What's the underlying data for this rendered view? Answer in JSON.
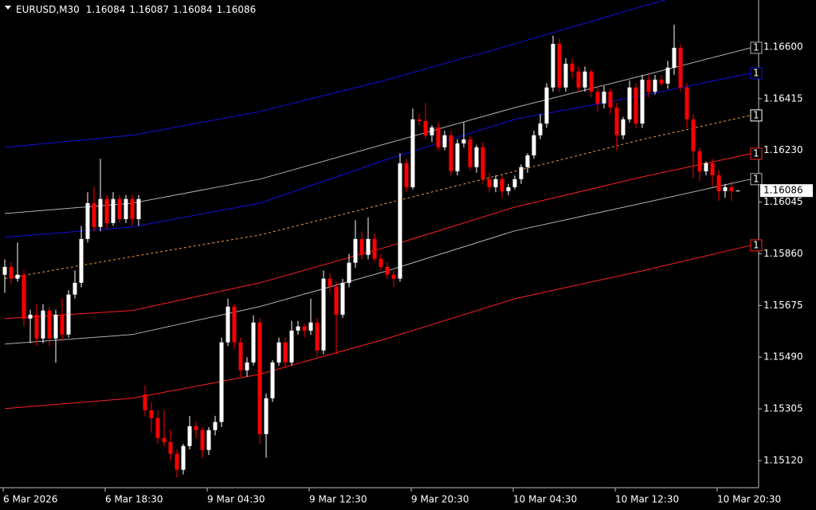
{
  "chart_data": {
    "type": "candlestick",
    "symbol": "EURUSD,M30",
    "ylim": [
      1.15023,
      1.16768
    ],
    "yticks": [
      {
        "value": 1.166,
        "label": "1.16600"
      },
      1.16415,
      {
        "value": 1.1623,
        "label": "1.16230"
      },
      1.16045,
      {
        "value": 1.1586,
        "label": "1.15860"
      },
      1.15675,
      {
        "value": 1.1549,
        "label": "1.15490"
      },
      1.15305,
      {
        "value": 1.1512,
        "label": "1.15120"
      }
    ],
    "current_price": 1.16086,
    "up_color": "#ffffff",
    "down_color": "#ff0000",
    "categories": [
      "6 Mar 2026",
      null,
      null,
      null,
      null,
      null,
      null,
      null,
      null,
      null,
      null,
      null,
      null,
      null,
      null,
      null,
      "6 Mar 18:30",
      null,
      null,
      null,
      null,
      null,
      null,
      null,
      null,
      null,
      null,
      null,
      null,
      null,
      null,
      null,
      "9 Mar 04:30",
      null,
      null,
      null,
      null,
      null,
      null,
      null,
      null,
      null,
      null,
      null,
      null,
      null,
      null,
      null,
      "9 Mar 12:30",
      null,
      null,
      null,
      null,
      null,
      null,
      null,
      null,
      null,
      null,
      null,
      null,
      null,
      null,
      null,
      "9 Mar 20:30",
      null,
      null,
      null,
      null,
      null,
      null,
      null,
      null,
      null,
      null,
      null,
      null,
      null,
      null,
      null,
      "10 Mar 04:30",
      null,
      null,
      null,
      null,
      null,
      null,
      null,
      null,
      null,
      null,
      null,
      null,
      null,
      null,
      null,
      "10 Mar 12:30",
      null,
      null,
      null,
      null,
      null,
      null,
      null,
      null,
      null,
      null,
      null,
      null,
      null,
      null,
      null,
      "10 Mar 20:30",
      null,
      null,
      null
    ],
    "candles": [
      [
        1.15785,
        1.1584,
        1.1572,
        1.15813
      ],
      [
        1.15813,
        1.1583,
        1.1575,
        1.15771
      ],
      [
        1.15771,
        1.159,
        1.1576,
        1.15785
      ],
      [
        1.15785,
        1.158,
        1.156,
        1.15628
      ],
      [
        1.15628,
        1.1566,
        1.1554,
        1.15642
      ],
      [
        1.15642,
        1.1568,
        1.1553,
        1.15557
      ],
      [
        1.15557,
        1.1568,
        1.1554,
        1.15657
      ],
      [
        1.15657,
        1.1567,
        1.1553,
        1.15557
      ],
      [
        1.15557,
        1.1566,
        1.1547,
        1.15642
      ],
      [
        1.15642,
        1.157,
        1.1555,
        1.15571
      ],
      [
        1.15571,
        1.1573,
        1.1556,
        1.15714
      ],
      [
        1.15714,
        1.158,
        1.157,
        1.15756
      ],
      [
        1.15756,
        1.1596,
        1.1574,
        1.15913
      ],
      [
        1.15913,
        1.1608,
        1.159,
        1.16041
      ],
      [
        1.16041,
        1.161,
        1.1594,
        1.15956
      ],
      [
        1.15956,
        1.162,
        1.1594,
        1.16056
      ],
      [
        1.16056,
        1.1607,
        1.1595,
        1.1597
      ],
      [
        1.1597,
        1.1608,
        1.1596,
        1.16056
      ],
      [
        1.16056,
        1.1607,
        1.1597,
        1.15984
      ],
      [
        1.15984,
        1.1607,
        1.1597,
        1.16056
      ],
      [
        1.16056,
        1.1607,
        1.1596,
        1.15984
      ],
      [
        1.15984,
        1.1607,
        1.1596,
        1.16056
      ],
      [
        1.15357,
        1.1539,
        1.1528,
        1.153
      ],
      [
        1.153,
        1.1533,
        1.1522,
        1.15272
      ],
      [
        1.15272,
        1.153,
        1.1518,
        1.15201
      ],
      [
        1.15201,
        1.153,
        1.1517,
        1.15186
      ],
      [
        1.15186,
        1.1523,
        1.1512,
        1.15144
      ],
      [
        1.15144,
        1.1516,
        1.1506,
        1.15087
      ],
      [
        1.15087,
        1.1518,
        1.1507,
        1.15172
      ],
      [
        1.15172,
        1.1528,
        1.1516,
        1.15243
      ],
      [
        1.15243,
        1.1526,
        1.152,
        1.15229
      ],
      [
        1.15229,
        1.1524,
        1.1513,
        1.15158
      ],
      [
        1.15158,
        1.1524,
        1.1514,
        1.15229
      ],
      [
        1.15229,
        1.1528,
        1.1521,
        1.15258
      ],
      [
        1.15258,
        1.1556,
        1.1524,
        1.15543
      ],
      [
        1.15543,
        1.157,
        1.1553,
        1.15671
      ],
      [
        1.15671,
        1.1568,
        1.1552,
        1.15543
      ],
      [
        1.15543,
        1.1556,
        1.1542,
        1.15443
      ],
      [
        1.15443,
        1.1549,
        1.1542,
        1.15471
      ],
      [
        1.15471,
        1.1564,
        1.1546,
        1.15614
      ],
      [
        1.15614,
        1.1563,
        1.1518,
        1.15215
      ],
      [
        1.15215,
        1.1536,
        1.1513,
        1.15343
      ],
      [
        1.15343,
        1.1548,
        1.1533,
        1.15471
      ],
      [
        1.15471,
        1.1556,
        1.1546,
        1.15543
      ],
      [
        1.15543,
        1.1556,
        1.1545,
        1.15471
      ],
      [
        1.15471,
        1.1562,
        1.1546,
        1.15585
      ],
      [
        1.15585,
        1.1562,
        1.1557,
        1.156
      ],
      [
        1.156,
        1.1561,
        1.1556,
        1.15585
      ],
      [
        1.15585,
        1.157,
        1.1557,
        1.15614
      ],
      [
        1.15614,
        1.1563,
        1.1549,
        1.15514
      ],
      [
        1.15514,
        1.158,
        1.155,
        1.15771
      ],
      [
        1.15771,
        1.1579,
        1.1572,
        1.15742
      ],
      [
        1.15742,
        1.1576,
        1.155,
        1.15642
      ],
      [
        1.15642,
        1.1577,
        1.1563,
        1.15756
      ],
      [
        1.15756,
        1.1586,
        1.1574,
        1.15828
      ],
      [
        1.15828,
        1.1598,
        1.1581,
        1.15913
      ],
      [
        1.15913,
        1.1594,
        1.1584,
        1.15856
      ],
      [
        1.15856,
        1.1599,
        1.1584,
        1.15913
      ],
      [
        1.15913,
        1.1593,
        1.1583,
        1.15842
      ],
      [
        1.15842,
        1.1586,
        1.158,
        1.15813
      ],
      [
        1.15813,
        1.1583,
        1.1577,
        1.15785
      ],
      [
        1.15785,
        1.158,
        1.1574,
        1.15771
      ],
      [
        1.15771,
        1.1622,
        1.1576,
        1.16184
      ],
      [
        1.16184,
        1.162,
        1.1608,
        1.16098
      ],
      [
        1.16098,
        1.1638,
        1.1609,
        1.16341
      ],
      [
        1.16341,
        1.1636,
        1.1632,
        1.16335
      ],
      [
        1.16335,
        1.164,
        1.1627,
        1.16284
      ],
      [
        1.16284,
        1.1632,
        1.1626,
        1.16312
      ],
      [
        1.16312,
        1.1633,
        1.1623,
        1.16241
      ],
      [
        1.16241,
        1.163,
        1.1623,
        1.16284
      ],
      [
        1.16284,
        1.163,
        1.1614,
        1.16155
      ],
      [
        1.16155,
        1.1627,
        1.1614,
        1.16255
      ],
      [
        1.16255,
        1.1633,
        1.1624,
        1.16269
      ],
      [
        1.16269,
        1.1628,
        1.1616,
        1.1617
      ],
      [
        1.1617,
        1.1625,
        1.1615,
        1.16241
      ],
      [
        1.16241,
        1.1626,
        1.1611,
        1.16127
      ],
      [
        1.16127,
        1.1615,
        1.1608,
        1.16098
      ],
      [
        1.16098,
        1.1614,
        1.1608,
        1.16127
      ],
      [
        1.16127,
        1.1614,
        1.1606,
        1.16084
      ],
      [
        1.16084,
        1.1611,
        1.1607,
        1.16098
      ],
      [
        1.16098,
        1.1614,
        1.1609,
        1.16127
      ],
      [
        1.16127,
        1.1618,
        1.1611,
        1.1617
      ],
      [
        1.1617,
        1.1622,
        1.1615,
        1.16212
      ],
      [
        1.16212,
        1.163,
        1.162,
        1.16284
      ],
      [
        1.16284,
        1.1636,
        1.1627,
        1.16326
      ],
      [
        1.16326,
        1.1647,
        1.1631,
        1.16455
      ],
      [
        1.16455,
        1.1664,
        1.1644,
        1.16611
      ],
      [
        1.16611,
        1.1663,
        1.1644,
        1.16455
      ],
      [
        1.16455,
        1.1656,
        1.1644,
        1.1654
      ],
      [
        1.1654,
        1.1656,
        1.1649,
        1.16512
      ],
      [
        1.16512,
        1.1653,
        1.1644,
        1.16455
      ],
      [
        1.16455,
        1.1653,
        1.1644,
        1.16512
      ],
      [
        1.16512,
        1.1652,
        1.1642,
        1.1644
      ],
      [
        1.1644,
        1.1646,
        1.1637,
        1.16398
      ],
      [
        1.16398,
        1.1646,
        1.1638,
        1.1644
      ],
      [
        1.1644,
        1.1645,
        1.1636,
        1.16383
      ],
      [
        1.16383,
        1.164,
        1.1623,
        1.16284
      ],
      [
        1.16284,
        1.1635,
        1.1627,
        1.16341
      ],
      [
        1.16341,
        1.1648,
        1.1633,
        1.16455
      ],
      [
        1.16455,
        1.1647,
        1.1631,
        1.16326
      ],
      [
        1.16326,
        1.165,
        1.1631,
        1.16483
      ],
      [
        1.16483,
        1.165,
        1.1642,
        1.1644
      ],
      [
        1.1644,
        1.165,
        1.1643,
        1.16483
      ],
      [
        1.16483,
        1.165,
        1.1646,
        1.16469
      ],
      [
        1.16469,
        1.1655,
        1.1645,
        1.16526
      ],
      [
        1.16526,
        1.1668,
        1.165,
        1.16597
      ],
      [
        1.16597,
        1.1661,
        1.1644,
        1.16455
      ],
      [
        1.16455,
        1.1647,
        1.1631,
        1.16341
      ],
      [
        1.16341,
        1.1636,
        1.1613,
        1.16227
      ],
      [
        1.16227,
        1.1624,
        1.1612,
        1.16155
      ],
      [
        1.16155,
        1.1619,
        1.1614,
        1.16184
      ],
      [
        1.16184,
        1.162,
        1.161,
        1.16141
      ],
      [
        1.16141,
        1.1616,
        1.1605,
        1.16084
      ],
      [
        1.16084,
        1.1611,
        1.1606,
        1.16098
      ],
      [
        1.16098,
        1.1612,
        1.1605,
        1.16084
      ],
      [
        1.16084,
        1.16087,
        1.16084,
        1.16086
      ]
    ],
    "indicator_x": [
      0,
      20,
      40,
      60,
      80,
      100,
      117
    ],
    "lines": [
      {
        "color": "#1010e0",
        "values": [
          1.16241,
          1.16284,
          1.16369,
          1.16483,
          1.16611,
          1.16745,
          1.16854
        ]
      },
      {
        "color": "#b0b0b0",
        "values": [
          1.16004,
          1.16041,
          1.16127,
          1.16255,
          1.16383,
          1.16497,
          1.16597
        ],
        "tag": "1"
      },
      {
        "color": "#1010e0",
        "values": [
          1.15919,
          1.15956,
          1.16041,
          1.16198,
          1.16341,
          1.16426,
          1.16506
        ],
        "tag": "1"
      },
      {
        "color": "#f0a040",
        "dashed": true,
        "values": [
          1.15771,
          1.1585,
          1.15927,
          1.16041,
          1.16155,
          1.16269,
          1.16355
        ],
        "tag": "1"
      },
      {
        "color": "#ff2020",
        "values": [
          1.15628,
          1.15657,
          1.15756,
          1.15885,
          1.16027,
          1.16135,
          1.16218
        ],
        "tag": "1"
      },
      {
        "color": "#b0b0b0",
        "values": [
          1.15537,
          1.15571,
          1.15671,
          1.15799,
          1.15942,
          1.16041,
          1.16127
        ],
        "tag": "1"
      },
      {
        "color": "#ff2020",
        "values": [
          1.15306,
          1.15343,
          1.15429,
          1.15557,
          1.15699,
          1.15799,
          1.1589
        ],
        "tag": "1"
      }
    ]
  }
}
